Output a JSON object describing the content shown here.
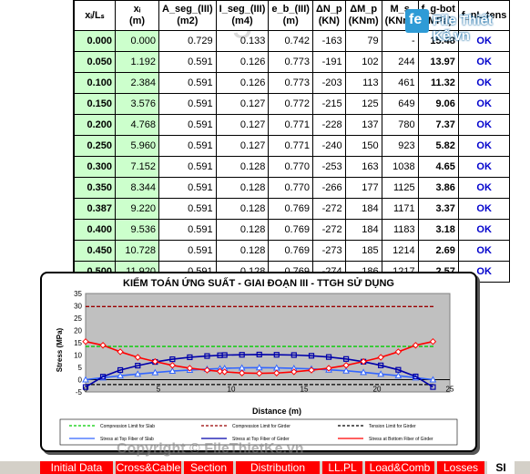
{
  "watermark_page": "Page 5",
  "logo": {
    "mark": "fe",
    "text": "File Thiết Kế.vn"
  },
  "table": {
    "headers": [
      "xᵢ/Lₛ",
      "xᵢ",
      "A_seg_(III)",
      "I_seg_(III)",
      "e_b_(III)",
      "ΔN_p",
      "ΔM_p",
      "M_s",
      "f_g-bot",
      "f_nL-tens"
    ],
    "units": [
      "",
      "(m)",
      "(m2)",
      "(m4)",
      "(m)",
      "(KN)",
      "(KNm)",
      "(KNm)",
      "(MPa)",
      ""
    ],
    "rows": [
      [
        "0.000",
        "0.000",
        "0.729",
        "0.133",
        "0.742",
        "-163",
        "79",
        "-",
        "15.48",
        "OK"
      ],
      [
        "0.050",
        "1.192",
        "0.591",
        "0.126",
        "0.773",
        "-191",
        "102",
        "244",
        "13.97",
        "OK"
      ],
      [
        "0.100",
        "2.384",
        "0.591",
        "0.126",
        "0.773",
        "-203",
        "113",
        "461",
        "11.32",
        "OK"
      ],
      [
        "0.150",
        "3.576",
        "0.591",
        "0.127",
        "0.772",
        "-215",
        "125",
        "649",
        "9.06",
        "OK"
      ],
      [
        "0.200",
        "4.768",
        "0.591",
        "0.127",
        "0.771",
        "-228",
        "137",
        "780",
        "7.37",
        "OK"
      ],
      [
        "0.250",
        "5.960",
        "0.591",
        "0.127",
        "0.771",
        "-240",
        "150",
        "923",
        "5.82",
        "OK"
      ],
      [
        "0.300",
        "7.152",
        "0.591",
        "0.128",
        "0.770",
        "-253",
        "163",
        "1038",
        "4.65",
        "OK"
      ],
      [
        "0.350",
        "8.344",
        "0.591",
        "0.128",
        "0.770",
        "-266",
        "177",
        "1125",
        "3.86",
        "OK"
      ],
      [
        "0.387",
        "9.220",
        "0.591",
        "0.128",
        "0.769",
        "-272",
        "184",
        "1171",
        "3.37",
        "OK"
      ],
      [
        "0.400",
        "9.536",
        "0.591",
        "0.128",
        "0.769",
        "-272",
        "184",
        "1183",
        "3.18",
        "OK"
      ],
      [
        "0.450",
        "10.728",
        "0.591",
        "0.128",
        "0.769",
        "-273",
        "185",
        "1214",
        "2.69",
        "OK"
      ],
      [
        "0.500",
        "11.920",
        "0.591",
        "0.128",
        "0.769",
        "-274",
        "186",
        "1217",
        "2.57",
        "OK"
      ]
    ]
  },
  "chart_data": {
    "type": "line",
    "title": "KIỂM TOÁN ỨNG SUẤT - GIAI ĐOẠN III - TTGH SỬ DỤNG",
    "xlabel": "Distance (m)",
    "ylabel": "Stress (MPa)",
    "xlim": [
      0,
      25
    ],
    "ylim": [
      -5,
      35
    ],
    "xticks": [
      0.0,
      5.0,
      10.0,
      15.0,
      20.0,
      25.0
    ],
    "yticks": [
      -5.0,
      0.0,
      5.0,
      10.0,
      15.0,
      20.0,
      25.0,
      30.0,
      35.0
    ],
    "grid": false,
    "legend_position": "bottom",
    "series": [
      {
        "name": "Compression Limit for Slab",
        "color": "#00cc00",
        "style": "dashed",
        "x": [
          0,
          24
        ],
        "y": [
          13.5,
          13.5
        ]
      },
      {
        "name": "Compression Limit for Girder",
        "color": "#990000",
        "style": "dashed",
        "x": [
          0,
          24
        ],
        "y": [
          29.7,
          29.7
        ]
      },
      {
        "name": "Tension Limit for Girder",
        "color": "#000000",
        "style": "dashed",
        "x": [
          0,
          24
        ],
        "y": [
          -2.0,
          -2.0
        ]
      },
      {
        "name": "Stress at Top Fiber of Slab",
        "color": "#3366ff",
        "marker": "triangle",
        "x": [
          0,
          1.19,
          2.38,
          3.58,
          4.77,
          5.96,
          7.15,
          8.34,
          9.22,
          9.54,
          10.73,
          11.92,
          13.11,
          14.3,
          15.5,
          16.69,
          17.88,
          19.07,
          20.26,
          21.46,
          22.65,
          23.84
        ],
        "y": [
          0,
          0.8,
          1.6,
          2.3,
          2.9,
          3.5,
          3.9,
          4.3,
          4.5,
          4.6,
          4.8,
          4.9,
          4.8,
          4.6,
          4.4,
          4.0,
          3.6,
          3.0,
          2.3,
          1.6,
          0.8,
          0
        ]
      },
      {
        "name": "Stress at Top Fiber of Girder",
        "color": "#0000aa",
        "marker": "square",
        "x": [
          0,
          1.19,
          2.38,
          3.58,
          4.77,
          5.96,
          7.15,
          8.34,
          9.22,
          9.54,
          10.73,
          11.92,
          13.11,
          14.3,
          15.5,
          16.69,
          17.88,
          19.07,
          20.26,
          21.46,
          22.65,
          23.84
        ],
        "y": [
          -3.0,
          1.2,
          3.9,
          5.7,
          7.2,
          8.3,
          9.1,
          9.6,
          9.9,
          10.0,
          10.1,
          10.2,
          10.1,
          10.0,
          9.7,
          9.2,
          8.4,
          7.3,
          5.8,
          4.0,
          1.3,
          -3.0
        ]
      },
      {
        "name": "Stress at Bottom Fiber of Girder",
        "color": "#ff0000",
        "marker": "diamond",
        "x": [
          0,
          1.19,
          2.38,
          3.58,
          4.77,
          5.96,
          7.15,
          8.34,
          9.22,
          9.54,
          10.73,
          11.92,
          13.11,
          14.3,
          15.5,
          16.69,
          17.88,
          19.07,
          20.26,
          21.46,
          22.65,
          23.84
        ],
        "y": [
          15.48,
          13.97,
          11.32,
          9.06,
          7.37,
          5.82,
          4.65,
          3.86,
          3.37,
          3.18,
          2.69,
          2.57,
          2.69,
          3.18,
          3.86,
          4.65,
          5.82,
          7.37,
          9.06,
          11.32,
          13.97,
          15.48
        ]
      }
    ]
  },
  "copyright": "Copyright © FileThietKe.vn",
  "tabs": [
    {
      "label": "Initial Data",
      "active": false
    },
    {
      "label": "Cross&Cable",
      "active": false
    },
    {
      "label": "Section",
      "active": false
    },
    {
      "label": "Distribution",
      "active": false
    },
    {
      "label": "LL.PL",
      "active": false
    },
    {
      "label": "Load&Comb",
      "active": false
    },
    {
      "label": "Losses",
      "active": false
    },
    {
      "label": "SI",
      "active": true
    }
  ]
}
